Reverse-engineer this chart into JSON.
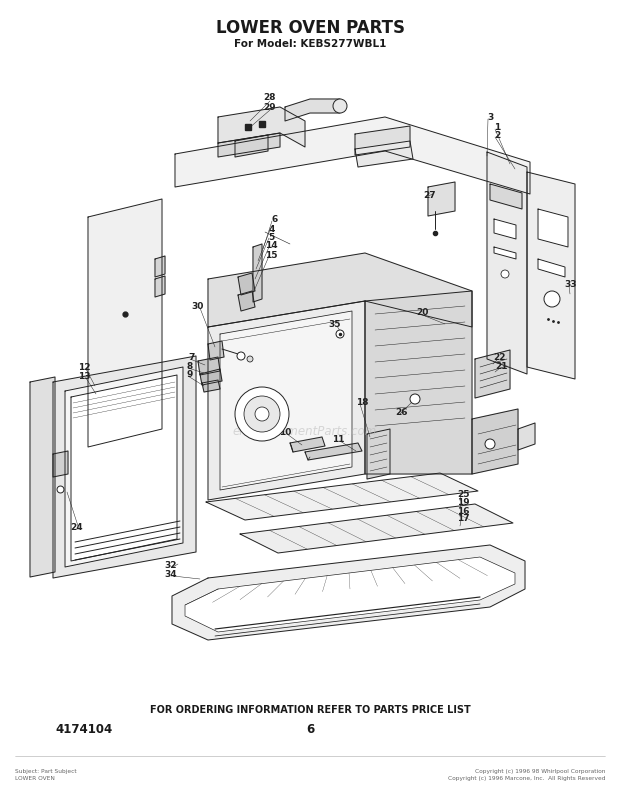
{
  "title": "LOWER OVEN PARTS",
  "subtitle": "For Model: KEBS277WBL1",
  "footer_text": "FOR ORDERING INFORMATION REFER TO PARTS PRICE LIST",
  "part_number": "4174104",
  "page_number": "6",
  "watermark": "eReplacementParts.com",
  "bg_color": "#ffffff",
  "line_color": "#222222",
  "text_color": "#1a1a1a",
  "label_positions": [
    [
      270,
      98,
      "28"
    ],
    [
      270,
      107,
      "29"
    ],
    [
      490,
      118,
      "3"
    ],
    [
      497,
      128,
      "1"
    ],
    [
      497,
      136,
      "2"
    ],
    [
      275,
      220,
      "6"
    ],
    [
      272,
      229,
      "4"
    ],
    [
      271,
      237,
      "5"
    ],
    [
      271,
      246,
      "14"
    ],
    [
      271,
      255,
      "15"
    ],
    [
      430,
      195,
      "27"
    ],
    [
      198,
      307,
      "30"
    ],
    [
      192,
      358,
      "7"
    ],
    [
      190,
      367,
      "8"
    ],
    [
      190,
      375,
      "9"
    ],
    [
      335,
      325,
      "35"
    ],
    [
      285,
      433,
      "10"
    ],
    [
      338,
      440,
      "11"
    ],
    [
      362,
      403,
      "18"
    ],
    [
      422,
      313,
      "20"
    ],
    [
      402,
      413,
      "26"
    ],
    [
      500,
      358,
      "22"
    ],
    [
      502,
      367,
      "21"
    ],
    [
      84,
      368,
      "12"
    ],
    [
      84,
      377,
      "13"
    ],
    [
      77,
      528,
      "24"
    ],
    [
      463,
      495,
      "25"
    ],
    [
      463,
      503,
      "19"
    ],
    [
      463,
      511,
      "16"
    ],
    [
      463,
      519,
      "17"
    ],
    [
      171,
      566,
      "32"
    ],
    [
      171,
      575,
      "34"
    ],
    [
      571,
      285,
      "33"
    ]
  ]
}
